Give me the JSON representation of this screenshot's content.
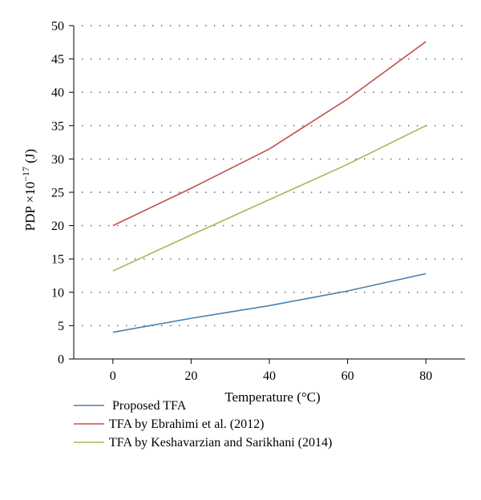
{
  "chart_data": {
    "type": "line",
    "x": [
      0,
      20,
      40,
      60,
      80
    ],
    "xlabel": "Temperature (°C)",
    "ylabel_main": "PDP ×10",
    "ylabel_exp": "−17",
    "ylabel_unit": " (J)",
    "xlim": [
      -10,
      90
    ],
    "ylim": [
      0,
      50
    ],
    "xticks": [
      0,
      20,
      40,
      60,
      80
    ],
    "yticks": [
      0,
      5,
      10,
      15,
      20,
      25,
      30,
      35,
      40,
      45,
      50
    ],
    "grid": "horizontal dotted",
    "legend_position": "bottom",
    "series": [
      {
        "name": "Proposed TFA",
        "color": "#4a7fb0",
        "values": [
          4.0,
          6.1,
          8.0,
          10.2,
          12.8
        ]
      },
      {
        "name": "TFA by Ebrahimi et al. (2012)",
        "color": "#c0504d",
        "values": [
          20.0,
          25.6,
          31.5,
          39.0,
          47.6
        ]
      },
      {
        "name": "TFA by Keshavarzian and Sarikhani (2014)",
        "color": "#9bbb59",
        "values": [
          13.2,
          18.6,
          23.9,
          29.2,
          35.0
        ]
      }
    ]
  }
}
